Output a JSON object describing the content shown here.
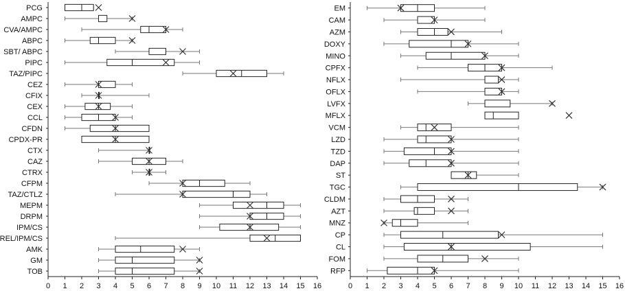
{
  "chart_data": [
    {
      "type": "box",
      "title": "",
      "xlabel": "",
      "ylabel": "",
      "xlim": [
        0,
        16
      ],
      "x_ticks": [
        "0",
        "1",
        "2",
        "3",
        "4",
        "5",
        "6",
        "7",
        "8",
        "9",
        "10",
        "11",
        "12",
        "13",
        "14",
        "15",
        "16"
      ],
      "grid": false,
      "legend": "none",
      "categories": [
        "PCG",
        "AMPC",
        "CVA/AMPC",
        "ABPC",
        "SBT/ ABPC",
        "PIPC",
        "TAZ/PIPC",
        "CEZ",
        "CFIX",
        "CEX",
        "CCL",
        "CFDN",
        "CPDX-PR",
        "CTX",
        "CAZ",
        "CTRX",
        "CFPM",
        "TAZ/CTLZ",
        "MEPM",
        "DRPM",
        "IPM/CS",
        "REL/IPM/CS",
        "AMK",
        "GM",
        "TOB"
      ],
      "boxes": [
        {
          "min": 1,
          "q1": 1,
          "median": 2,
          "q3": 2.7,
          "max": 2.7,
          "mean": 3
        },
        {
          "min": 1,
          "q1": 3,
          "median": 3,
          "q3": 3.5,
          "max": 5,
          "mean": 5
        },
        {
          "min": 2,
          "q1": 5.5,
          "median": 6,
          "q3": 7,
          "max": 8,
          "mean": 7
        },
        {
          "min": 1,
          "q1": 2.5,
          "median": 3,
          "q3": 4,
          "max": 5,
          "mean": 5
        },
        {
          "min": 4,
          "q1": 6,
          "median": 6,
          "q3": 7,
          "max": 9,
          "mean": 8
        },
        {
          "min": 1,
          "q1": 3.5,
          "median": 5,
          "q3": 7.5,
          "max": 9,
          "mean": 7
        },
        {
          "min": 8,
          "q1": 10,
          "median": 11.5,
          "q3": 13,
          "max": 14,
          "mean": 11
        },
        {
          "min": 1,
          "q1": 3,
          "median": 3,
          "q3": 4,
          "max": 5,
          "mean": 3
        },
        {
          "min": 2,
          "q1": 3,
          "median": 3,
          "q3": 3,
          "max": 6,
          "mean": 3
        },
        {
          "min": 1,
          "q1": 2.2,
          "median": 3,
          "q3": 3.7,
          "max": 5,
          "mean": 3
        },
        {
          "min": 1,
          "q1": 2,
          "median": 3,
          "q3": 4,
          "max": 5,
          "mean": 4
        },
        {
          "min": 1,
          "q1": 2.5,
          "median": 4,
          "q3": 6,
          "max": 6,
          "mean": 4
        },
        {
          "min": 2,
          "q1": 2,
          "median": 4,
          "q3": 6,
          "max": 6,
          "mean": 4
        },
        {
          "min": 3,
          "q1": 6,
          "median": 6,
          "q3": 6,
          "max": 6,
          "mean": 6
        },
        {
          "min": 3,
          "q1": 5,
          "median": 6,
          "q3": 7,
          "max": 8,
          "mean": 6
        },
        {
          "min": 5,
          "q1": 6,
          "median": 6,
          "q3": 6,
          "max": 7,
          "mean": 6
        },
        {
          "min": 6,
          "q1": 8,
          "median": 9,
          "q3": 10.5,
          "max": 12,
          "mean": 8
        },
        {
          "min": 4,
          "q1": 8,
          "median": 11,
          "q3": 12,
          "max": 13,
          "mean": 8
        },
        {
          "min": 9,
          "q1": 11,
          "median": 13,
          "q3": 14,
          "max": 15,
          "mean": 12
        },
        {
          "min": 9,
          "q1": 12,
          "median": 13,
          "q3": 14,
          "max": 15,
          "mean": 12
        },
        {
          "min": 9,
          "q1": 10.2,
          "median": 12,
          "q3": 13.7,
          "max": 15,
          "mean": 12
        },
        {
          "min": 4,
          "q1": 12,
          "median": 13.5,
          "q3": 15,
          "max": 15,
          "mean": 13
        },
        {
          "min": 3,
          "q1": 4,
          "median": 5.5,
          "q3": 7.5,
          "max": 9,
          "mean": 8
        },
        {
          "min": 3,
          "q1": 4,
          "median": 5,
          "q3": 7.5,
          "max": 9,
          "mean": 9
        },
        {
          "min": 3,
          "q1": 4,
          "median": 5,
          "q3": 7.5,
          "max": 9,
          "mean": 9
        }
      ]
    },
    {
      "type": "box",
      "title": "",
      "xlabel": "",
      "ylabel": "",
      "xlim": [
        0,
        16
      ],
      "x_ticks": [
        "0",
        "1",
        "2",
        "3",
        "4",
        "5",
        "6",
        "7",
        "8",
        "9",
        "10",
        "11",
        "12",
        "13",
        "14",
        "15",
        "16"
      ],
      "grid": false,
      "legend": "none",
      "categories": [
        "EM",
        "CAM",
        "AZM",
        "DOXY",
        "MINO",
        "CPFX",
        "NFLX",
        "OFLX",
        "LVFX",
        "MFLX",
        "VCM",
        "LZD",
        "TZD",
        "DAP",
        "ST",
        "TGC",
        "CLDM",
        "AZT",
        "MNZ",
        "CP",
        "CL",
        "FOM",
        "RFP"
      ],
      "boxes": [
        {
          "min": 1,
          "q1": 3,
          "median": 4,
          "q3": 5,
          "max": 8,
          "mean": 3
        },
        {
          "min": 2,
          "q1": 4,
          "median": 5,
          "q3": 5,
          "max": 8,
          "mean": 5
        },
        {
          "min": 3,
          "q1": 4,
          "median": 5,
          "q3": 5.8,
          "max": 9,
          "mean": 6
        },
        {
          "min": 2,
          "q1": 3.5,
          "median": 6,
          "q3": 7,
          "max": 10,
          "mean": 7
        },
        {
          "min": 3,
          "q1": 4.5,
          "median": 6,
          "q3": 8,
          "max": 10,
          "mean": 8
        },
        {
          "min": 4,
          "q1": 7,
          "median": 8,
          "q3": 9,
          "max": 12,
          "mean": 9
        },
        {
          "min": 3,
          "q1": 8,
          "median": 8,
          "q3": 8.8,
          "max": 10,
          "mean": 9
        },
        {
          "min": 4,
          "q1": 8,
          "median": 9,
          "q3": 9,
          "max": 10,
          "mean": 9
        },
        {
          "min": 7,
          "q1": 8,
          "median": 8,
          "q3": 9.5,
          "max": 12,
          "mean": 12
        },
        {
          "min": 8,
          "q1": 8,
          "median": 8.5,
          "q3": 10,
          "max": 10,
          "mean": 13
        },
        {
          "min": 3,
          "q1": 4,
          "median": 4.5,
          "q3": 6,
          "max": 10,
          "mean": 5
        },
        {
          "min": 2,
          "q1": 4,
          "median": 4.5,
          "q3": 6,
          "max": 10,
          "mean": 6
        },
        {
          "min": 2,
          "q1": 3.2,
          "median": 5,
          "q3": 6,
          "max": 10,
          "mean": 6
        },
        {
          "min": 2,
          "q1": 3.5,
          "median": 4.5,
          "q3": 6,
          "max": 10,
          "mean": 6
        },
        {
          "min": 6,
          "q1": 6,
          "median": 7,
          "q3": 7.5,
          "max": 10,
          "mean": 7
        },
        {
          "min": 3,
          "q1": 4,
          "median": 10,
          "q3": 13.5,
          "max": 15,
          "mean": 15
        },
        {
          "min": 2,
          "q1": 3,
          "median": 4,
          "q3": 5,
          "max": 7,
          "mean": 6
        },
        {
          "min": 2,
          "q1": 3.8,
          "median": 4,
          "q3": 5,
          "max": 7,
          "mean": 6
        },
        {
          "min": 2,
          "q1": 2.5,
          "median": 3,
          "q3": 4,
          "max": 7,
          "mean": 2
        },
        {
          "min": 2,
          "q1": 3,
          "median": 5.5,
          "q3": 8.8,
          "max": 15,
          "mean": 9
        },
        {
          "min": 2,
          "q1": 3.2,
          "median": 6,
          "q3": 10.7,
          "max": 15,
          "mean": 6
        },
        {
          "min": 2,
          "q1": 4,
          "median": 5.5,
          "q3": 7,
          "max": 10,
          "mean": 8
        },
        {
          "min": 1,
          "q1": 2.2,
          "median": 4,
          "q3": 5,
          "max": 10,
          "mean": 5
        }
      ]
    }
  ]
}
